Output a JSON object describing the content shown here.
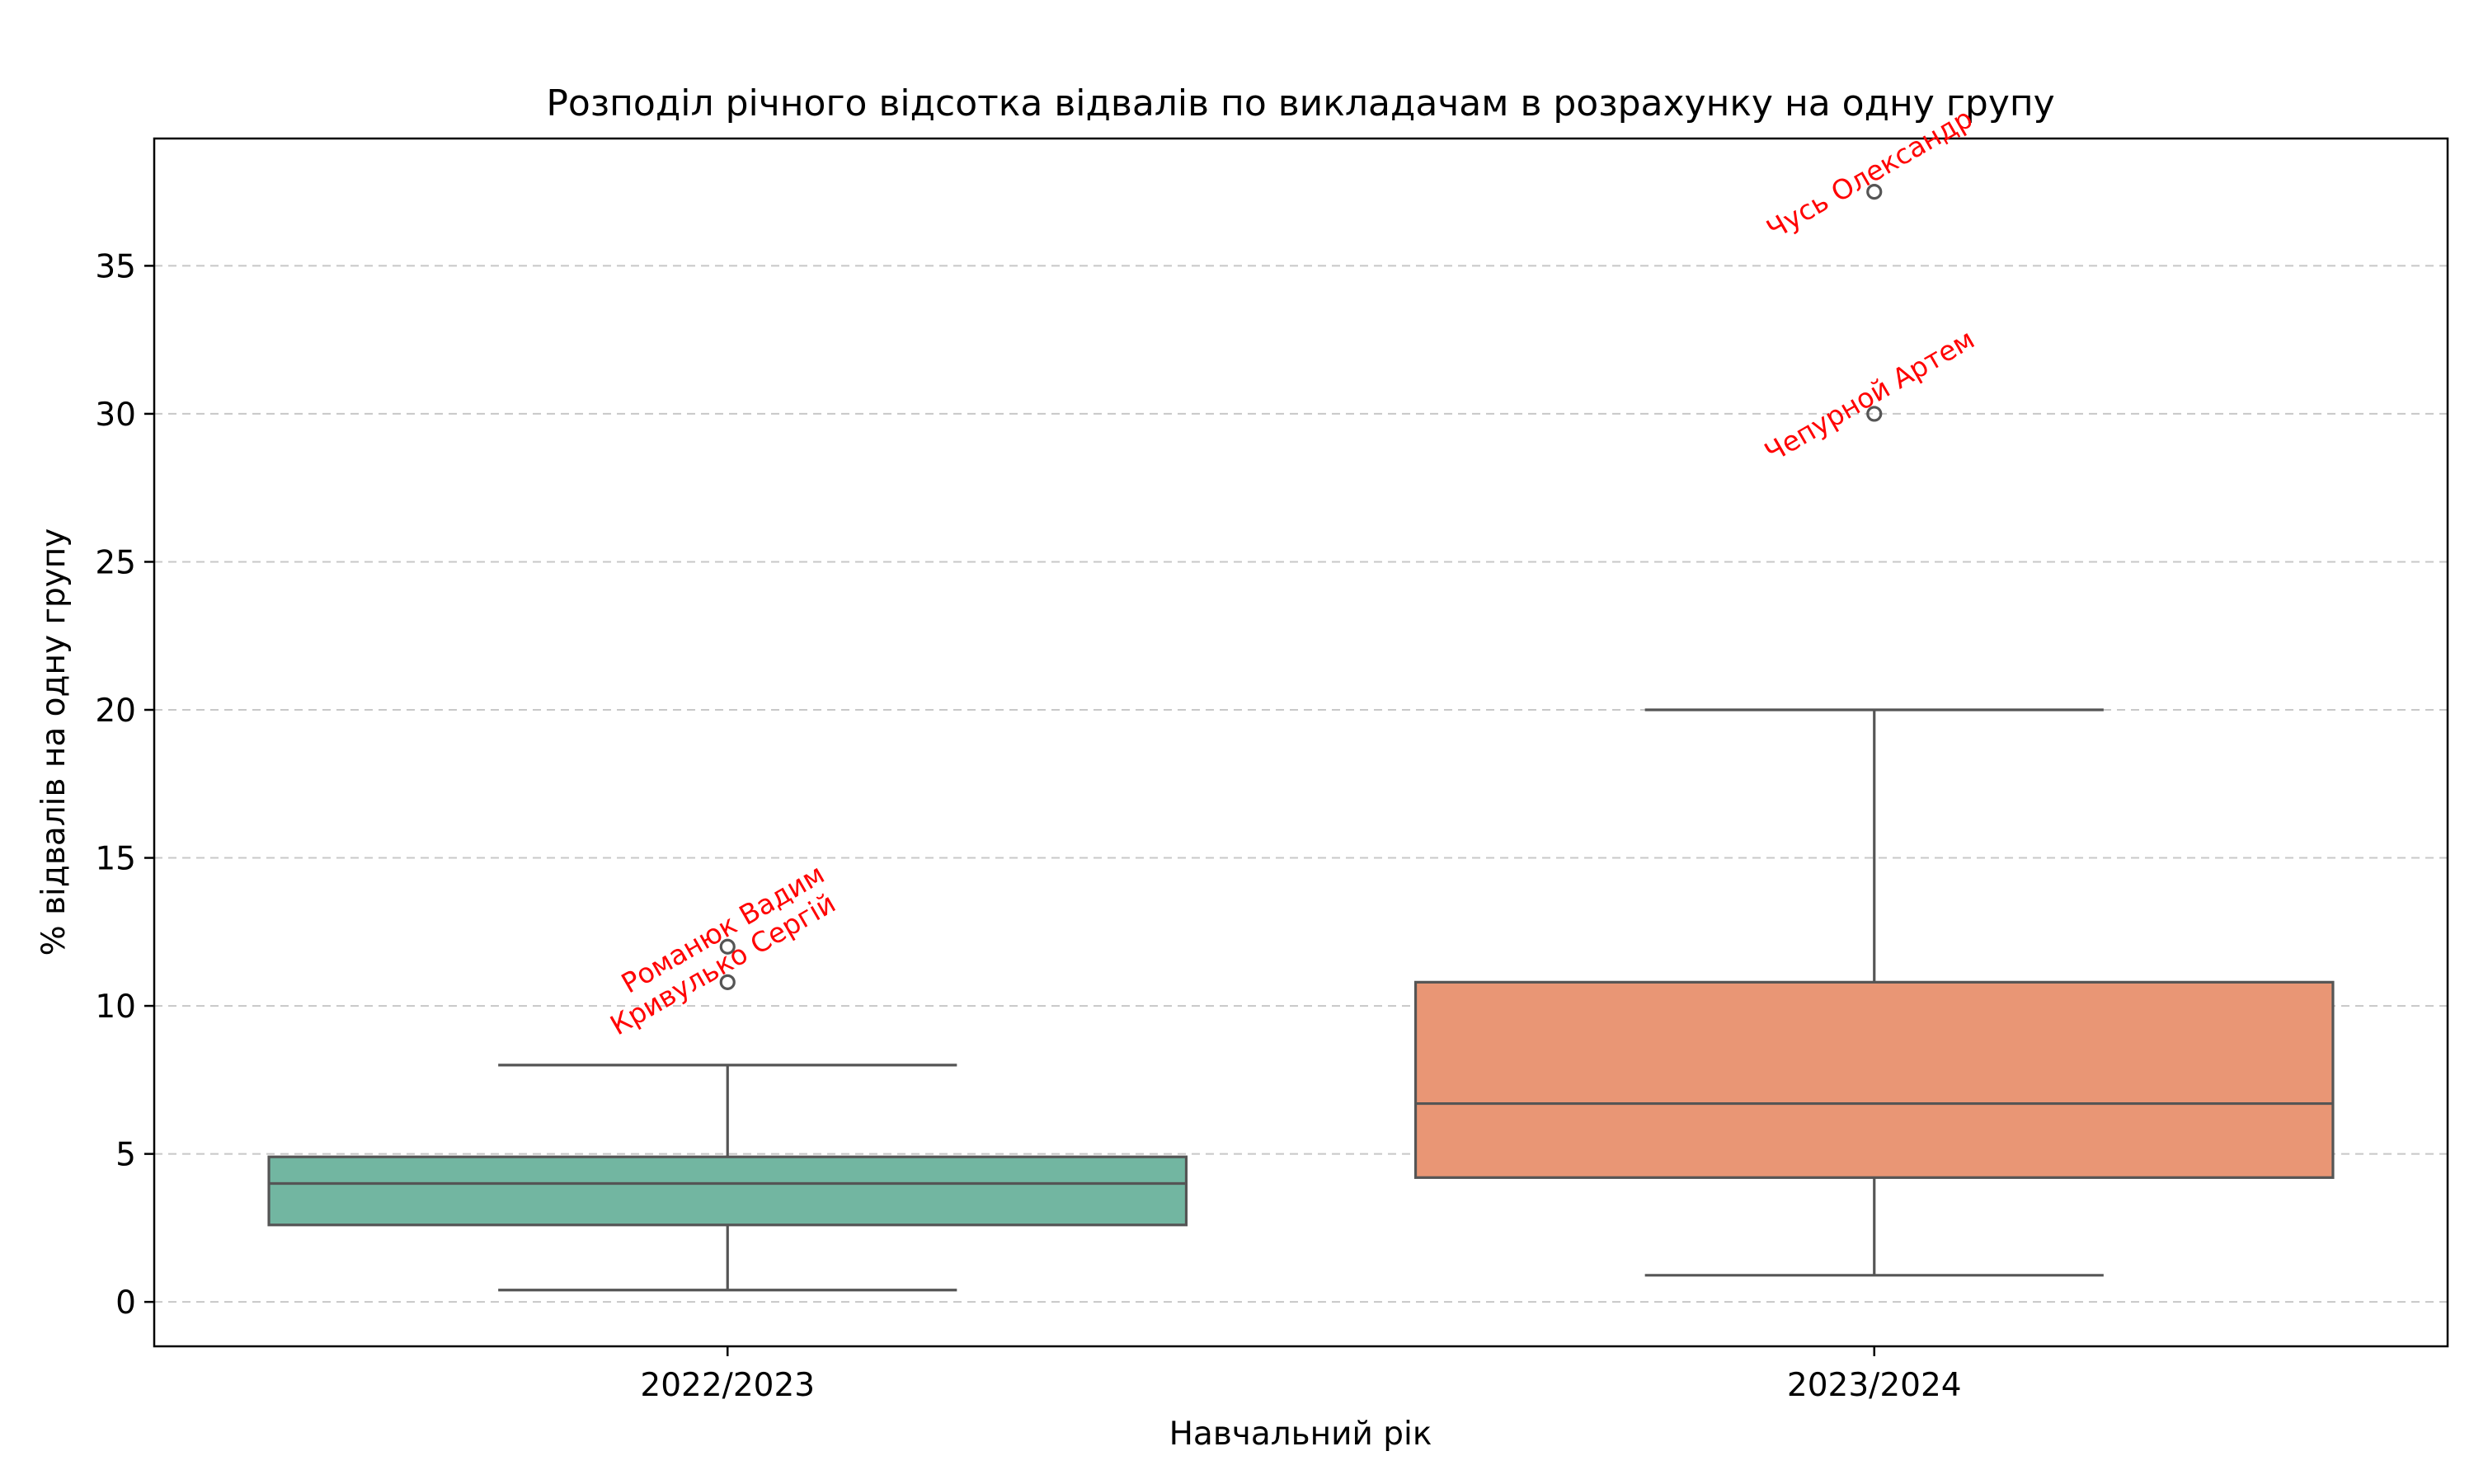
{
  "chart_data": {
    "type": "box",
    "title": "Розподіл річного відсотка відвалів по викладачам в розрахунку на одну групу",
    "xlabel": "Навчальний рік",
    "ylabel": "% відвалів на одну групу",
    "categories": [
      "2022/2023",
      "2023/2024"
    ],
    "ylim": [
      -1.5,
      39.3
    ],
    "yticks": [
      0,
      5,
      10,
      15,
      20,
      25,
      30,
      35
    ],
    "grid": "y-dashed",
    "boxes": [
      {
        "category": "2022/2023",
        "color": "#72b6a1",
        "whisker_low": 0.4,
        "q1": 2.6,
        "median": 4.0,
        "q3": 4.9,
        "whisker_high": 8.0,
        "outliers": [
          12.0,
          10.8
        ]
      },
      {
        "category": "2023/2024",
        "color": "#e99675",
        "whisker_low": 0.9,
        "q1": 4.2,
        "median": 6.7,
        "q3": 10.8,
        "whisker_high": 20.0,
        "outliers": [
          37.5,
          30.0
        ]
      }
    ],
    "annotations": [
      {
        "category": "2022/2023",
        "y": 12.0,
        "text": "Романюк Вадим"
      },
      {
        "category": "2022/2023",
        "y": 10.8,
        "text": "Кривулько Сергій"
      },
      {
        "category": "2023/2024",
        "y": 37.5,
        "text": "Чусь Олександр"
      },
      {
        "category": "2023/2024",
        "y": 30.0,
        "text": "Чепурной Артем"
      }
    ]
  }
}
